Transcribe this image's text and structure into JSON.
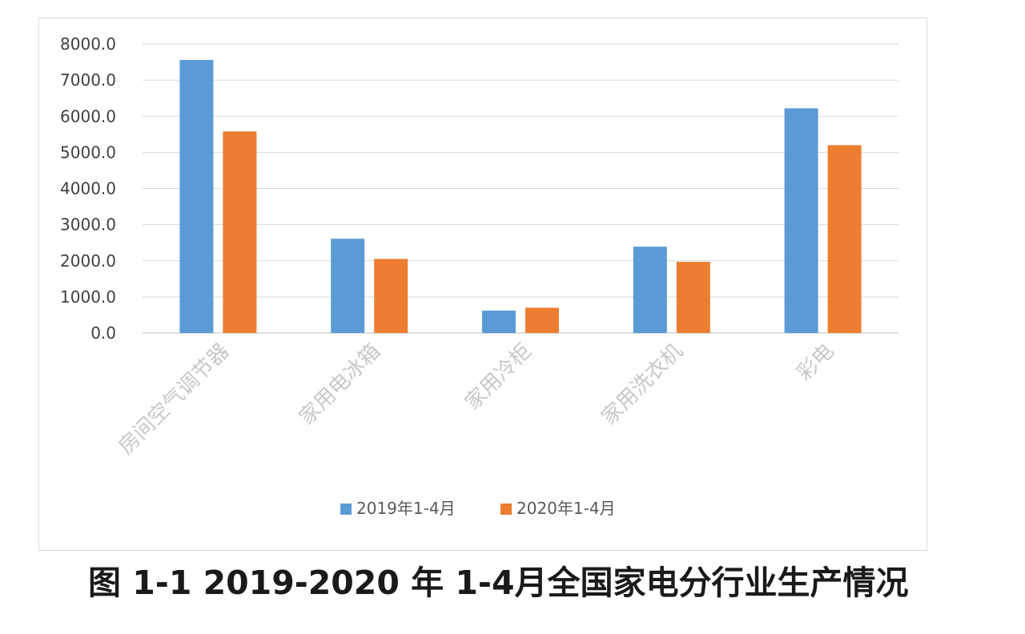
{
  "caption": "图 1-1 2019-2020 年 1-4月全国家电分行业生产情况",
  "chart_data": {
    "type": "bar",
    "title": "",
    "xlabel": "",
    "ylabel": "",
    "ylim": [
      0,
      8000
    ],
    "yticks": [
      0,
      1000,
      2000,
      3000,
      4000,
      5000,
      6000,
      7000,
      8000
    ],
    "ytick_labels": [
      "0.0",
      "1000.0",
      "2000.0",
      "3000.0",
      "4000.0",
      "5000.0",
      "6000.0",
      "7000.0",
      "8000.0"
    ],
    "grid": true,
    "legend_position": "bottom",
    "categories": [
      "房间空气调节器",
      "家用电冰箱",
      "家用冷柜",
      "家用洗衣机",
      "彩电"
    ],
    "series": [
      {
        "name": "2019年1-4月",
        "color": "#5b9bd5",
        "values": [
          7560,
          2610,
          620,
          2390,
          6220
        ]
      },
      {
        "name": "2020年1-4月",
        "color": "#ed7d31",
        "values": [
          5580,
          2050,
          700,
          1970,
          5200
        ]
      }
    ]
  }
}
